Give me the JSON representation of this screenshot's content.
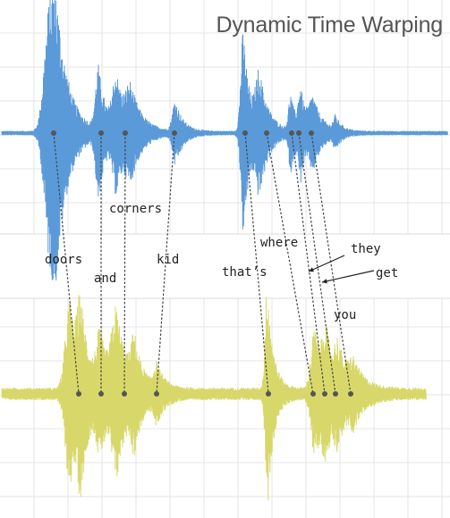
{
  "title": "Dynamic Time Warping",
  "colors": {
    "top_wave": "#5b9ad9",
    "bottom_wave": "#d8d86a",
    "grid": "#e6e6e6",
    "dots": "#555555",
    "links": "#444444"
  },
  "words": {
    "doors": "doors",
    "and": "and",
    "corners": "corners",
    "kid": "kid",
    "thats": "that’s",
    "where": "where",
    "they": "they",
    "get": "get",
    "you": "you"
  }
}
